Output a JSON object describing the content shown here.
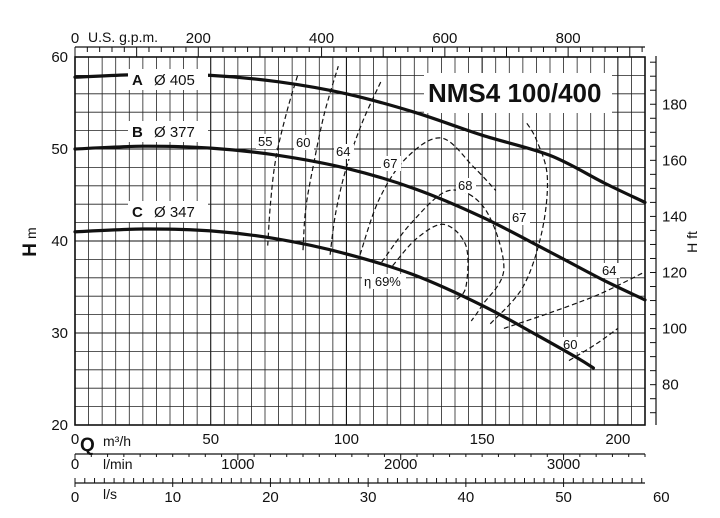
{
  "chart_data": {
    "type": "line",
    "title": "NMS4 100/400",
    "y_left": {
      "label_main": "H",
      "label_unit": "m",
      "ticks": [
        20,
        30,
        40,
        50,
        60
      ],
      "range": [
        20,
        60
      ]
    },
    "y_right": {
      "label": "H ft",
      "ticks": [
        80,
        100,
        120,
        140,
        160,
        180
      ]
    },
    "x_top": {
      "unit": "U.S. g.p.m.",
      "ticks": [
        "0",
        "200",
        "400",
        "600",
        "800"
      ],
      "values": [
        0,
        200,
        400,
        600,
        800
      ]
    },
    "x_axes": {
      "q_label": "Q",
      "m3h": {
        "unit": "m³/h",
        "ticks": [
          "0",
          "50",
          "100",
          "150",
          "200"
        ],
        "values": [
          0,
          50,
          100,
          150,
          200
        ],
        "range": [
          0,
          210
        ]
      },
      "lmin": {
        "unit": "l/min",
        "ticks": [
          "0",
          "1000",
          "2000",
          "3000"
        ],
        "values": [
          0,
          1000,
          2000,
          3000
        ]
      },
      "ls": {
        "unit": "l/s",
        "ticks": [
          "0",
          "10",
          "20",
          "30",
          "40",
          "50",
          "60"
        ],
        "values": [
          0,
          10,
          20,
          30,
          40,
          50,
          60
        ]
      }
    },
    "series": [
      {
        "name": "A",
        "diameter": "Ø 405",
        "x": [
          0,
          25,
          50,
          75,
          100,
          125,
          150,
          175,
          195,
          210
        ],
        "y": [
          57.8,
          58.1,
          58.0,
          57.3,
          56.0,
          54.0,
          51.5,
          49.3,
          46.3,
          44.2
        ]
      },
      {
        "name": "B",
        "diameter": "Ø 377",
        "x": [
          0,
          25,
          50,
          75,
          100,
          125,
          150,
          175,
          195,
          210
        ],
        "y": [
          50.0,
          50.3,
          50.1,
          49.3,
          47.9,
          45.7,
          42.6,
          38.8,
          35.7,
          33.6
        ]
      },
      {
        "name": "C",
        "diameter": "Ø 347",
        "x": [
          0,
          25,
          50,
          75,
          100,
          125,
          150,
          170,
          185,
          191
        ],
        "y": [
          41.0,
          41.3,
          41.1,
          40.2,
          38.6,
          36.3,
          33.0,
          29.8,
          27.3,
          26.2
        ]
      }
    ],
    "efficiency_curves": [
      {
        "label": "55",
        "x": [
          71,
          72,
          74,
          78,
          82
        ],
        "y": [
          39.5,
          44.0,
          49.0,
          54.0,
          58.0
        ]
      },
      {
        "label": "60",
        "x": [
          84,
          85,
          88,
          92,
          97
        ],
        "y": [
          39.0,
          43.5,
          48.5,
          54.0,
          59.0
        ]
      },
      {
        "label": "64",
        "x": [
          94,
          96,
          100,
          106,
          113
        ],
        "y": [
          38.5,
          43.0,
          48.0,
          53.0,
          57.5
        ]
      },
      {
        "label": "67",
        "x": [
          105,
          112,
          122,
          135,
          147,
          155
        ],
        "y": [
          38.5,
          44.5,
          49.0,
          51.2,
          48.0,
          45.5
        ]
      },
      {
        "label": "68",
        "x": [
          113,
          124,
          138,
          151,
          158,
          150,
          146
        ],
        "y": [
          37.7,
          42.0,
          45.5,
          43.5,
          37.0,
          33.0,
          31.3
        ]
      },
      {
        "label": "η 69%",
        "x": [
          117,
          126,
          136,
          144,
          144,
          140
        ],
        "y": [
          37.3,
          40.3,
          41.8,
          39.5,
          35.0,
          33.5
        ]
      },
      {
        "label": "67",
        "x": [
          153,
          165,
          172,
          174,
          170,
          166
        ],
        "y": [
          31.0,
          35.0,
          41.0,
          47.0,
          51.0,
          53.0
        ]
      },
      {
        "label": "64",
        "x": [
          158,
          175,
          193,
          209
        ],
        "y": [
          30.5,
          32.2,
          34.2,
          36.5
        ]
      },
      {
        "label": "60",
        "x": [
          182,
          192,
          200
        ],
        "y": [
          27.0,
          28.8,
          30.5
        ]
      }
    ]
  }
}
